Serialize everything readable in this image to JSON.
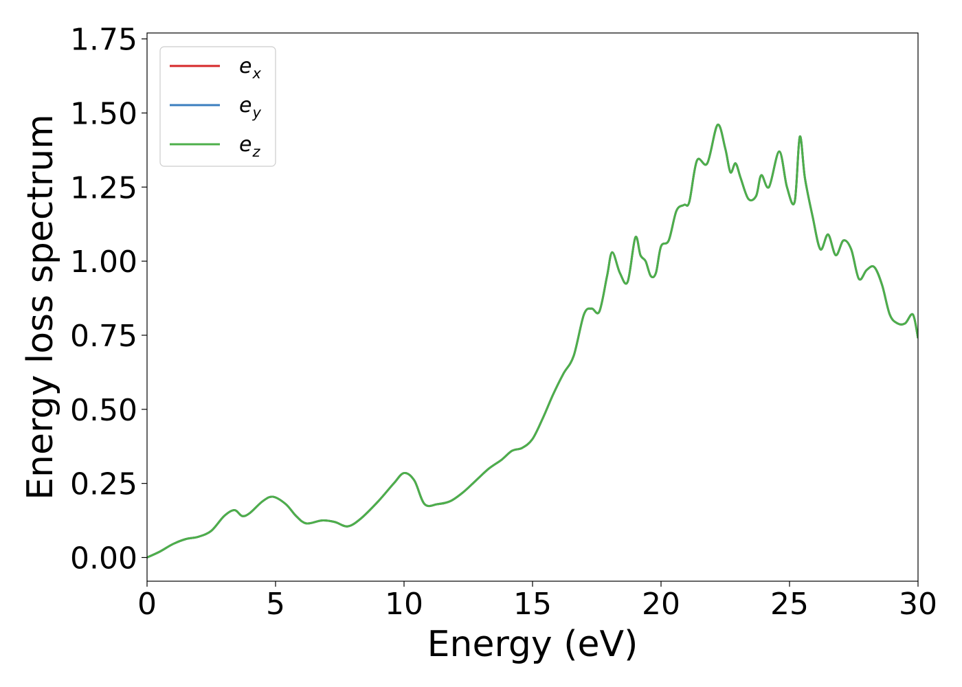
{
  "chart_data": {
    "type": "line",
    "title": "",
    "xlabel": "Energy (eV)",
    "ylabel": "Energy loss spectrum",
    "xlim": [
      0,
      30
    ],
    "ylim": [
      -0.08,
      1.77
    ],
    "x_ticks": [
      "0",
      "5",
      "10",
      "15",
      "20",
      "25",
      "30"
    ],
    "y_ticks": [
      "0.00",
      "0.25",
      "0.50",
      "0.75",
      "1.00",
      "1.25",
      "1.50",
      "1.75"
    ],
    "grid": false,
    "legend": {
      "placement": "top-left",
      "entries": [
        {
          "base": "e",
          "sub": "x",
          "color": "#d62728"
        },
        {
          "base": "e",
          "sub": "y",
          "color": "#3a7ebf"
        },
        {
          "base": "e",
          "sub": "z",
          "color": "#4daf4a"
        }
      ]
    },
    "x": [
      0,
      0.5,
      1.0,
      1.5,
      2.0,
      2.5,
      3.0,
      3.4,
      3.7,
      4.0,
      4.5,
      4.9,
      5.4,
      5.8,
      6.2,
      6.8,
      7.3,
      7.8,
      8.3,
      9.0,
      9.6,
      10.0,
      10.4,
      10.8,
      11.3,
      11.8,
      12.3,
      12.8,
      13.3,
      13.8,
      14.2,
      14.6,
      15.0,
      15.4,
      15.8,
      16.2,
      16.6,
      17.0,
      17.3,
      17.6,
      17.9,
      18.1,
      18.4,
      18.7,
      19.0,
      19.2,
      19.4,
      19.6,
      19.8,
      20.0,
      20.3,
      20.6,
      20.9,
      21.1,
      21.4,
      21.8,
      22.2,
      22.5,
      22.7,
      22.9,
      23.1,
      23.4,
      23.7,
      23.9,
      24.2,
      24.6,
      24.9,
      25.2,
      25.4,
      25.6,
      25.9,
      26.2,
      26.5,
      26.8,
      27.1,
      27.4,
      27.7,
      28.0,
      28.3,
      28.6,
      28.9,
      29.2,
      29.5,
      29.8,
      30.0
    ],
    "series": [
      {
        "name": "e_x",
        "color": "#d62728",
        "values": [
          0.0,
          0.02,
          0.045,
          0.062,
          0.07,
          0.09,
          0.14,
          0.16,
          0.14,
          0.15,
          0.19,
          0.205,
          0.18,
          0.14,
          0.115,
          0.125,
          0.12,
          0.105,
          0.13,
          0.19,
          0.25,
          0.285,
          0.26,
          0.18,
          0.18,
          0.19,
          0.22,
          0.26,
          0.3,
          0.33,
          0.36,
          0.37,
          0.4,
          0.47,
          0.55,
          0.62,
          0.68,
          0.82,
          0.84,
          0.83,
          0.95,
          1.03,
          0.96,
          0.93,
          1.08,
          1.02,
          1.0,
          0.95,
          0.96,
          1.05,
          1.07,
          1.17,
          1.19,
          1.2,
          1.34,
          1.33,
          1.46,
          1.38,
          1.3,
          1.33,
          1.28,
          1.21,
          1.22,
          1.29,
          1.25,
          1.37,
          1.25,
          1.2,
          1.42,
          1.28,
          1.15,
          1.04,
          1.09,
          1.02,
          1.07,
          1.04,
          0.94,
          0.97,
          0.98,
          0.92,
          0.82,
          0.79,
          0.79,
          0.82,
          0.74
        ]
      },
      {
        "name": "e_y",
        "color": "#3a7ebf",
        "values": [
          0.0,
          0.02,
          0.045,
          0.062,
          0.07,
          0.09,
          0.14,
          0.16,
          0.14,
          0.15,
          0.19,
          0.205,
          0.18,
          0.14,
          0.115,
          0.125,
          0.12,
          0.105,
          0.13,
          0.19,
          0.25,
          0.285,
          0.26,
          0.18,
          0.18,
          0.19,
          0.22,
          0.26,
          0.3,
          0.33,
          0.36,
          0.37,
          0.4,
          0.47,
          0.55,
          0.62,
          0.68,
          0.82,
          0.84,
          0.83,
          0.95,
          1.03,
          0.96,
          0.93,
          1.08,
          1.02,
          1.0,
          0.95,
          0.96,
          1.05,
          1.07,
          1.17,
          1.19,
          1.2,
          1.34,
          1.33,
          1.46,
          1.38,
          1.3,
          1.33,
          1.28,
          1.21,
          1.22,
          1.29,
          1.25,
          1.37,
          1.25,
          1.2,
          1.42,
          1.28,
          1.15,
          1.04,
          1.09,
          1.02,
          1.07,
          1.04,
          0.94,
          0.97,
          0.98,
          0.92,
          0.82,
          0.79,
          0.79,
          0.82,
          0.74
        ]
      },
      {
        "name": "e_z",
        "color": "#4daf4a",
        "values": [
          0.0,
          0.02,
          0.045,
          0.062,
          0.07,
          0.09,
          0.14,
          0.16,
          0.14,
          0.15,
          0.19,
          0.205,
          0.18,
          0.14,
          0.115,
          0.125,
          0.12,
          0.105,
          0.13,
          0.19,
          0.25,
          0.285,
          0.26,
          0.18,
          0.18,
          0.19,
          0.22,
          0.26,
          0.3,
          0.33,
          0.36,
          0.37,
          0.4,
          0.47,
          0.55,
          0.62,
          0.68,
          0.82,
          0.84,
          0.83,
          0.95,
          1.03,
          0.96,
          0.93,
          1.08,
          1.02,
          1.0,
          0.95,
          0.96,
          1.05,
          1.07,
          1.17,
          1.19,
          1.2,
          1.34,
          1.33,
          1.46,
          1.38,
          1.3,
          1.33,
          1.28,
          1.21,
          1.22,
          1.29,
          1.25,
          1.37,
          1.25,
          1.2,
          1.42,
          1.28,
          1.15,
          1.04,
          1.09,
          1.02,
          1.07,
          1.04,
          0.94,
          0.97,
          0.98,
          0.92,
          0.82,
          0.79,
          0.79,
          0.82,
          0.74
        ]
      }
    ]
  }
}
